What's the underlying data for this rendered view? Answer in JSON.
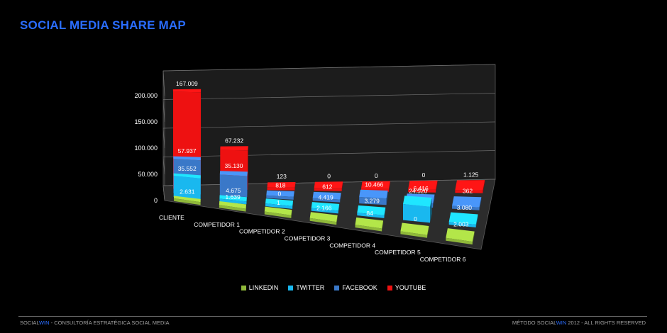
{
  "title": "SOCIAL MEDIA SHARE MAP",
  "colors": {
    "background": "#000000",
    "title": "#2a6dff",
    "linkedin": "#8fb83a",
    "twitter": "#19b8ef",
    "facebook": "#3a78c8",
    "youtube": "#ee1111"
  },
  "chart_data": {
    "type": "bar",
    "subtype": "3d-clustered-bar",
    "title": "",
    "xlabel": "",
    "ylabel": "",
    "categories": [
      "CLIENTE",
      "COMPETIDOR 1",
      "COMPETIDOR 2",
      "COMPETIDOR 3",
      "COMPETIDOR 4",
      "COMPETIDOR 5",
      "COMPETIDOR 6"
    ],
    "y_ticks": [
      "0",
      "50.000",
      "100.000",
      "150.000",
      "200.000"
    ],
    "ylim": [
      0,
      200000
    ],
    "grid": true,
    "legend": "bottom",
    "series": [
      {
        "name": "LINKEDIN",
        "color": "#8fb83a",
        "values": [
          2631,
          1639,
          1,
          2166,
          84,
          0,
          2003
        ],
        "labels": [
          "2.631",
          "1.639",
          "1",
          "2.166",
          "84",
          "0",
          "2.003"
        ]
      },
      {
        "name": "TWITTER",
        "color": "#19b8ef",
        "values": [
          35552,
          4675,
          0,
          4419,
          3279,
          24520,
          3080
        ],
        "labels": [
          "35.552",
          "4.675",
          "0",
          "4.419",
          "3.279",
          "24.520",
          "3.080"
        ]
      },
      {
        "name": "FACEBOOK",
        "color": "#3a78c8",
        "values": [
          57937,
          35130,
          818,
          612,
          10466,
          6416,
          362
        ],
        "labels": [
          "57.937",
          "35.130",
          "818",
          "612",
          "10.466",
          "6.416",
          "362"
        ]
      },
      {
        "name": "YOUTUBE",
        "color": "#ee1111",
        "values": [
          167009,
          67232,
          123,
          0,
          0,
          0,
          1125
        ],
        "labels": [
          "167.009",
          "67.232",
          "123",
          "0",
          "0",
          "0",
          "1.125"
        ]
      }
    ]
  },
  "footer": {
    "left_brand_a": "SOCIAL",
    "left_brand_b": "WIN",
    "left_text": " - CONSULTORÍA ESTRATÉGICA SOCIAL MEDIA",
    "right_prefix": "MÉTODO ",
    "right_brand_a": "SOCIAL",
    "right_brand_b": "WIN",
    "right_text": " 2012 - ALL RIGHTS RESERVED"
  }
}
